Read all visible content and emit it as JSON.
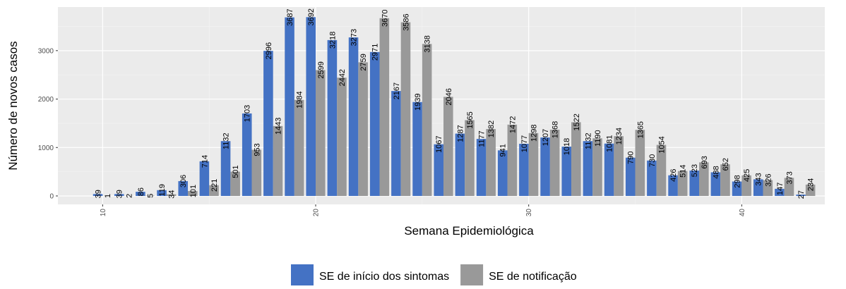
{
  "chart_data": {
    "type": "bar",
    "x_label": "Semana Epidemiológica",
    "y_label": "Número de novos casos",
    "x": [
      10,
      11,
      12,
      13,
      14,
      15,
      16,
      17,
      18,
      19,
      20,
      21,
      22,
      23,
      24,
      25,
      26,
      27,
      28,
      29,
      30,
      31,
      32,
      33,
      34,
      35,
      36,
      37,
      38,
      39,
      40,
      41,
      42,
      43
    ],
    "series": [
      {
        "name": "SE de início dos sintomas",
        "color": "#4472c4",
        "values": [
          39,
          39,
          86,
          119,
          306,
          714,
          1132,
          1703,
          2996,
          3687,
          3692,
          3218,
          3273,
          2971,
          2167,
          1939,
          1067,
          1287,
          1177,
          941,
          1077,
          1207,
          1018,
          1132,
          1081,
          790,
          730,
          426,
          523,
          488,
          298,
          343,
          147,
          27
        ]
      },
      {
        "name": "SE de notificação",
        "color": "#999999",
        "values": [
          1,
          2,
          5,
          34,
          101,
          221,
          501,
          953,
          1443,
          1984,
          2599,
          2442,
          2759,
          3670,
          3586,
          3138,
          2046,
          1565,
          1382,
          1472,
          1298,
          1368,
          1522,
          1190,
          1234,
          1365,
          1054,
          514,
          693,
          652,
          425,
          326,
          373,
          234
        ]
      }
    ],
    "xlim": [
      7.9,
      43.9
    ],
    "xticks": [
      10,
      20,
      30,
      40
    ],
    "ylim": [
      -175,
      3900
    ],
    "yticks": [
      0,
      1000,
      2000,
      3000
    ],
    "grid": true,
    "legend": "bottom"
  }
}
